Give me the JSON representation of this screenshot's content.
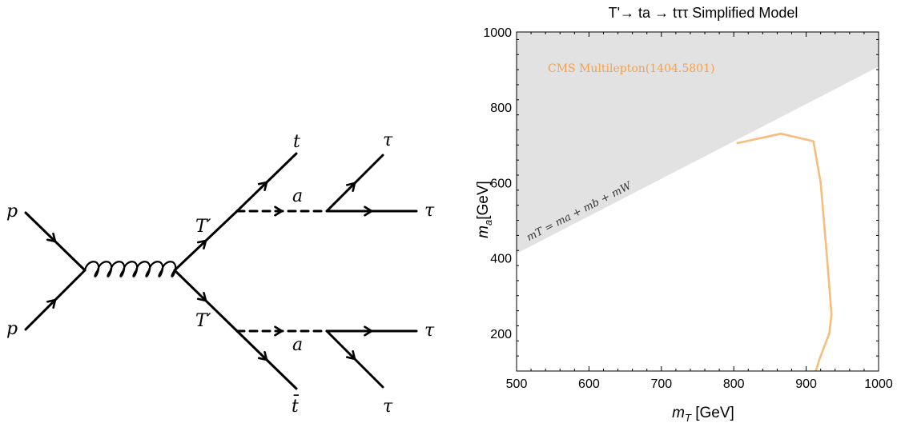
{
  "feynman": {
    "particles": {
      "p_top": "p",
      "p_bottom": "p",
      "tprime_top": "T′",
      "tprime_bottom": "T′",
      "a_top": "a",
      "a_bottom": "a",
      "t": "t",
      "tbar": "t̄",
      "tau_1": "τ",
      "tau_2": "τ",
      "tau_3": "τ",
      "tau_4": "τ"
    }
  },
  "chart_data": {
    "type": "line",
    "title": "T'→ ta → tττ Simplified Model",
    "xlabel": {
      "sym": "m",
      "sub": "T",
      "unit": " [GeV]"
    },
    "ylabel": {
      "sym": "m",
      "sub": "a",
      "unit": "[GeV]"
    },
    "xlim": [
      500,
      1000
    ],
    "ylim": [
      100,
      1000
    ],
    "xticks": [
      500,
      600,
      700,
      800,
      900,
      1000
    ],
    "yticks": [
      200,
      400,
      600,
      800,
      1000
    ],
    "grid": false,
    "colors": {
      "exclusion_line": "#f6bd7c",
      "exclusion_label": "#f5a04a",
      "kinematic_region": "#e2e2e2",
      "frame": "#000000"
    },
    "kinematic_region": {
      "boundary_label": "mT = ma + mb + mW",
      "boundary": [
        [
          500,
          412
        ],
        [
          1000,
          908
        ]
      ]
    },
    "series": [
      {
        "name": "CMS Multilepton(1404.5801)",
        "x": [
          805,
          865,
          910,
          920,
          928,
          933,
          935,
          932,
          924,
          918,
          915,
          913,
          910,
          908
        ],
        "y": [
          705,
          730,
          710,
          600,
          420,
          300,
          250,
          200,
          160,
          130,
          110,
          100,
          90,
          80
        ]
      }
    ]
  }
}
